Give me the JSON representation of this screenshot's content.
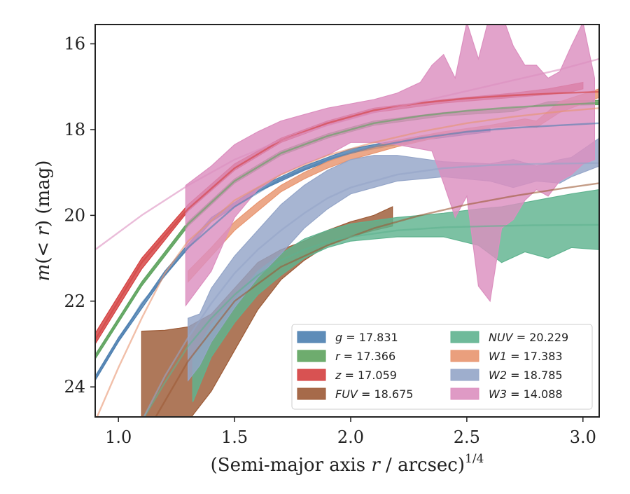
{
  "chart_data": {
    "type": "area",
    "xlabel": "(Semi-major axis r / arcsec)",
    "xlabel_main": "(Semi-major axis ",
    "xlabel_var": "r",
    "xlabel_rest": " / arcsec)",
    "xlabel_exp": "1/4",
    "ylabel_prefix": "m",
    "ylabel_mid": "(< ",
    "ylabel_var": "r",
    "ylabel_suffix": ") (mag)",
    "xlim": [
      0.9,
      3.07
    ],
    "ylim": [
      24.7,
      15.55
    ],
    "y_inverted": true,
    "xticks": [
      1.0,
      1.5,
      2.0,
      2.5,
      3.0
    ],
    "xtick_labels": [
      "1.0",
      "1.5",
      "2.0",
      "2.5",
      "3.0"
    ],
    "yticks": [
      16,
      18,
      20,
      22,
      24
    ],
    "ytick_labels": [
      "16",
      "18",
      "20",
      "22",
      "24"
    ],
    "grid": false,
    "legend_position": "lower-right",
    "legend_columns": 2,
    "series": [
      {
        "band": "g",
        "value_text": "17.831",
        "color": "#4c7fb0",
        "band_x": [
          0.9,
          1.0,
          1.2,
          1.4,
          1.6,
          1.8,
          2.0,
          2.3,
          2.6
        ],
        "band_lower": [
          23.75,
          22.85,
          21.3,
          20.05,
          19.35,
          18.85,
          18.45,
          18.15,
          17.98
        ],
        "band_upper": [
          23.85,
          22.95,
          21.4,
          20.15,
          19.45,
          18.95,
          18.55,
          18.25,
          18.05
        ],
        "model_x": [
          0.9,
          1.1,
          1.3,
          1.5,
          1.7,
          1.9,
          2.1,
          2.3,
          2.5,
          2.7,
          2.9,
          3.07
        ],
        "model_y": [
          23.8,
          22.05,
          20.75,
          19.8,
          19.15,
          18.7,
          18.4,
          18.2,
          18.05,
          17.96,
          17.9,
          17.85
        ]
      },
      {
        "band": "r",
        "value_text": "17.366",
        "color": "#5ea35e",
        "band_x": [
          0.9,
          1.1,
          1.3,
          1.5,
          1.7,
          1.9,
          2.1,
          2.4,
          2.7,
          2.85,
          2.95,
          3.07
        ],
        "band_lower": [
          23.25,
          21.55,
          20.15,
          19.15,
          18.5,
          18.1,
          17.8,
          17.6,
          17.5,
          17.45,
          17.43,
          17.42
        ],
        "band_upper": [
          23.35,
          21.65,
          20.25,
          19.25,
          18.6,
          18.2,
          17.9,
          17.68,
          17.58,
          17.35,
          17.33,
          17.32
        ],
        "model_x": [
          0.9,
          1.1,
          1.3,
          1.5,
          1.7,
          1.9,
          2.1,
          2.3,
          2.5,
          2.7,
          2.9,
          3.07
        ],
        "model_y": [
          23.3,
          21.6,
          20.2,
          19.2,
          18.55,
          18.15,
          17.85,
          17.68,
          17.56,
          17.48,
          17.42,
          17.38
        ]
      },
      {
        "band": "z",
        "value_text": "17.059",
        "color": "#d43f3f",
        "band_x": [
          0.9,
          1.1,
          1.3,
          1.5,
          1.7,
          1.9,
          2.1,
          2.4,
          2.7,
          2.85,
          2.95,
          3.0
        ],
        "band_lower": [
          23.0,
          21.25,
          19.9,
          18.95,
          18.3,
          17.9,
          17.6,
          17.38,
          17.25,
          17.18,
          17.12,
          17.05
        ],
        "band_upper": [
          22.75,
          21.0,
          19.75,
          18.8,
          18.2,
          17.8,
          17.5,
          17.3,
          17.15,
          17.05,
          16.95,
          16.9
        ],
        "model_x": [
          0.9,
          1.1,
          1.3,
          1.5,
          1.7,
          1.9,
          2.1,
          2.3,
          2.5,
          2.7,
          2.9,
          3.07
        ],
        "model_y": [
          22.9,
          21.1,
          19.85,
          18.9,
          18.25,
          17.85,
          17.55,
          17.38,
          17.27,
          17.2,
          17.15,
          17.12
        ]
      },
      {
        "band": "FUV",
        "value_text": "18.675",
        "color": "#9c5a36",
        "band_x": [
          1.1,
          1.2,
          1.3,
          1.4,
          1.5,
          1.6,
          1.7,
          1.8,
          1.9,
          2.0,
          2.1,
          2.18
        ],
        "band_lower": [
          24.8,
          24.8,
          24.8,
          24.1,
          23.15,
          22.2,
          21.5,
          21.05,
          20.7,
          20.5,
          20.35,
          20.25
        ],
        "band_upper": [
          22.7,
          22.68,
          22.6,
          22.3,
          21.7,
          21.1,
          20.8,
          20.6,
          20.35,
          20.15,
          20.0,
          19.8
        ],
        "model_x": [
          1.15,
          1.3,
          1.5,
          1.7,
          1.9,
          2.1,
          2.3,
          2.5,
          2.7,
          2.9,
          3.07
        ],
        "model_y": [
          24.8,
          23.4,
          22.0,
          21.2,
          20.7,
          20.3,
          20.0,
          19.75,
          19.55,
          19.38,
          19.25
        ]
      },
      {
        "band": "NUV",
        "value_text": "20.229",
        "color": "#5fb38f",
        "band_x": [
          1.32,
          1.4,
          1.5,
          1.6,
          1.7,
          1.8,
          1.9,
          2.0,
          2.2,
          2.4,
          2.55,
          2.65,
          2.75,
          2.85,
          2.95,
          3.07
        ],
        "band_lower": [
          24.35,
          23.3,
          22.5,
          21.85,
          21.4,
          21.0,
          20.75,
          20.6,
          20.5,
          20.5,
          20.7,
          21.1,
          20.85,
          21.0,
          20.75,
          20.8
        ],
        "band_upper": [
          23.3,
          22.55,
          21.95,
          21.3,
          20.9,
          20.55,
          20.35,
          20.2,
          20.05,
          19.95,
          19.85,
          19.8,
          19.7,
          19.6,
          19.5,
          19.4
        ],
        "model_x": [
          1.1,
          1.2,
          1.3,
          1.4,
          1.5,
          1.6,
          1.7,
          1.8,
          1.9,
          2.0,
          2.2,
          2.4,
          2.6,
          2.8,
          3.07
        ],
        "model_y": [
          24.8,
          23.9,
          23.05,
          22.4,
          21.85,
          21.4,
          21.05,
          20.8,
          20.62,
          20.5,
          20.35,
          20.28,
          20.25,
          20.23,
          20.22
        ]
      },
      {
        "band": "W1",
        "value_text": "17.383",
        "color": "#e8956f",
        "band_x": [
          1.3,
          1.4,
          1.5,
          1.6,
          1.7,
          1.8,
          1.9,
          2.0,
          2.2,
          2.4,
          2.6,
          2.75,
          2.8,
          2.9,
          3.07
        ],
        "band_lower": [
          21.55,
          20.95,
          20.35,
          19.9,
          19.45,
          19.15,
          18.9,
          18.7,
          18.4,
          18.15,
          17.95,
          17.9,
          17.95,
          17.6,
          17.25
        ],
        "band_upper": [
          21.3,
          20.75,
          20.15,
          19.7,
          19.3,
          19.0,
          18.75,
          18.55,
          18.25,
          18.05,
          17.9,
          17.75,
          17.8,
          17.35,
          17.05
        ],
        "model_x": [
          0.9,
          1.0,
          1.1,
          1.2,
          1.3,
          1.5,
          1.7,
          1.9,
          2.1,
          2.3,
          2.5,
          2.7,
          2.9,
          3.07
        ],
        "model_y": [
          24.8,
          23.55,
          22.4,
          21.35,
          20.6,
          19.65,
          19.05,
          18.6,
          18.3,
          18.05,
          17.85,
          17.7,
          17.58,
          17.5
        ]
      },
      {
        "band": "W2",
        "value_text": "18.785",
        "color": "#94a5c8",
        "band_x": [
          1.3,
          1.35,
          1.4,
          1.5,
          1.6,
          1.7,
          1.8,
          1.9,
          2.0,
          2.1,
          2.2,
          2.4,
          2.6,
          2.7,
          2.8,
          2.9,
          2.95,
          3.07
        ],
        "band_lower": [
          23.85,
          23.5,
          22.95,
          22.15,
          21.45,
          20.9,
          20.3,
          19.85,
          19.5,
          19.35,
          19.2,
          19.1,
          19.2,
          19.35,
          19.2,
          19.25,
          19.1,
          18.85
        ],
        "band_upper": [
          22.4,
          22.3,
          21.7,
          20.95,
          20.35,
          19.75,
          19.3,
          18.95,
          18.7,
          18.6,
          18.6,
          18.75,
          18.8,
          18.7,
          18.85,
          18.7,
          18.65,
          18.2
        ],
        "model_x": [
          1.1,
          1.2,
          1.3,
          1.4,
          1.5,
          1.6,
          1.7,
          1.8,
          1.9,
          2.0,
          2.2,
          2.4,
          2.6,
          2.8,
          3.07
        ],
        "model_y": [
          24.8,
          23.75,
          22.85,
          22.05,
          21.35,
          20.8,
          20.35,
          19.95,
          19.6,
          19.35,
          19.05,
          18.9,
          18.83,
          18.8,
          18.78
        ]
      },
      {
        "band": "W3",
        "value_text": "14.088",
        "color": "#dc8fbf",
        "band_x": [
          1.29,
          1.4,
          1.5,
          1.6,
          1.7,
          1.8,
          1.9,
          2.0,
          2.1,
          2.2,
          2.3,
          2.35,
          2.4,
          2.45,
          2.5,
          2.55,
          2.6,
          2.65,
          2.7,
          2.75,
          2.8,
          2.85,
          2.9,
          2.95,
          3.0,
          3.05
        ],
        "band_lower": [
          22.1,
          21.3,
          20.05,
          19.4,
          19.05,
          18.8,
          18.6,
          18.3,
          18.3,
          18.35,
          18.45,
          18.5,
          19.25,
          20.05,
          19.55,
          21.65,
          22.0,
          20.3,
          20.1,
          19.65,
          19.4,
          19.55,
          19.2,
          19.05,
          18.8,
          18.7
        ],
        "band_upper": [
          19.3,
          18.85,
          18.35,
          18.05,
          17.8,
          17.65,
          17.5,
          17.4,
          17.3,
          17.15,
          16.9,
          16.5,
          16.25,
          16.8,
          15.5,
          16.35,
          15.3,
          15.3,
          16.05,
          16.5,
          16.5,
          16.8,
          16.65,
          16.05,
          15.5,
          16.8
        ],
        "model_x": [
          0.9,
          1.1,
          1.3,
          1.5,
          1.7,
          1.9,
          2.1,
          2.3,
          2.5,
          2.7,
          2.9,
          3.07
        ],
        "model_y": [
          20.8,
          20.0,
          19.3,
          18.7,
          18.25,
          17.9,
          17.6,
          17.35,
          17.1,
          16.85,
          16.6,
          16.35
        ]
      }
    ],
    "legend": [
      {
        "band": "g",
        "value_text": "17.831",
        "color": "#4c7fb0",
        "col": 0,
        "row": 0
      },
      {
        "band": "r",
        "value_text": "17.366",
        "color": "#5ea35e",
        "col": 0,
        "row": 1
      },
      {
        "band": "z",
        "value_text": "17.059",
        "color": "#d43f3f",
        "col": 0,
        "row": 2
      },
      {
        "band": "FUV",
        "value_text": "18.675",
        "color": "#9c5a36",
        "col": 0,
        "row": 3
      },
      {
        "band": "NUV",
        "value_text": "20.229",
        "color": "#5fb38f",
        "col": 1,
        "row": 0
      },
      {
        "band": "W1",
        "value_text": "17.383",
        "color": "#e8956f",
        "col": 1,
        "row": 1
      },
      {
        "band": "W2",
        "value_text": "18.785",
        "color": "#94a5c8",
        "col": 1,
        "row": 2
      },
      {
        "band": "W3",
        "value_text": "14.088",
        "color": "#dc8fbf",
        "col": 1,
        "row": 3
      }
    ]
  }
}
